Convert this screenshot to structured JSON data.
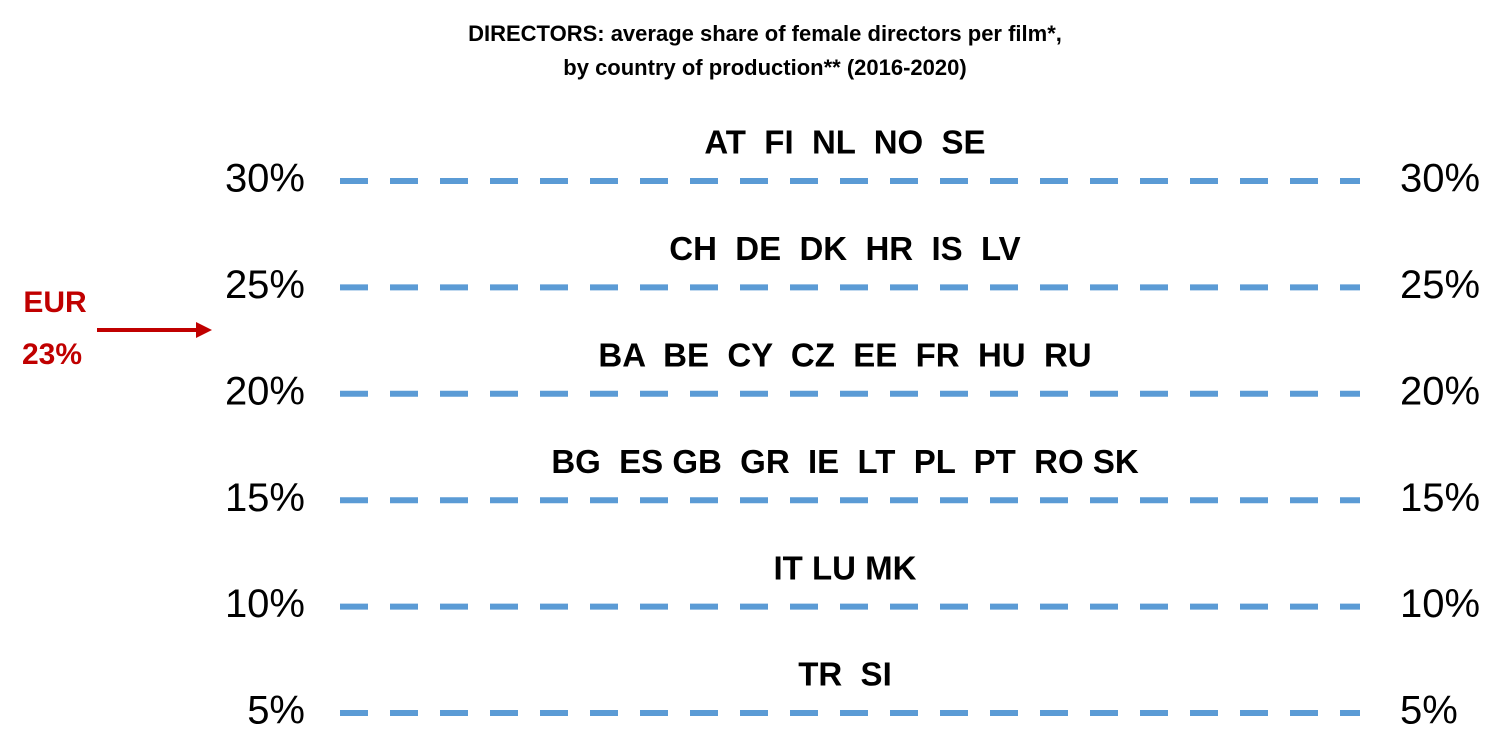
{
  "chart_data": {
    "type": "levels",
    "title": "DIRECTORS: average share of female directors per film*,",
    "subtitle": "by country of production** (2016-2020)",
    "ylim": [
      5,
      30
    ],
    "yticks": [
      {
        "value": 30,
        "label": "30%"
      },
      {
        "value": 25,
        "label": "25%"
      },
      {
        "value": 20,
        "label": "20%"
      },
      {
        "value": 15,
        "label": "15%"
      },
      {
        "value": 10,
        "label": "10%"
      },
      {
        "value": 5,
        "label": "5%"
      }
    ],
    "grid_color": "#5b9bd5",
    "groups": [
      {
        "label": "AT  FI  NL  NO  SE",
        "level": 30
      },
      {
        "label": "CH  DE  DK  HR  IS  LV",
        "level": 25
      },
      {
        "label": "BA  BE  CY  CZ  EE  FR  HU  RU",
        "level": 20
      },
      {
        "label": "BG  ES GB  GR  IE  LT  PL  PT  RO SK",
        "level": 15
      },
      {
        "label": "IT LU MK",
        "level": 10
      },
      {
        "label": "TR  SI",
        "level": 5
      }
    ],
    "marker": {
      "label": "EUR",
      "value": 23,
      "value_label": "23%",
      "color": "#c00000"
    }
  }
}
